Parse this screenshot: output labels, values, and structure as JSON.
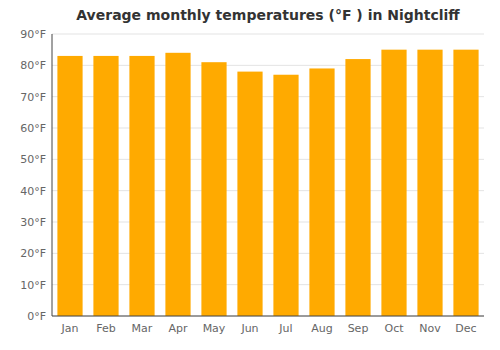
{
  "chart_data": {
    "type": "bar",
    "title": "Average monthly temperatures (°F ) in Nightcliff",
    "categories": [
      "Jan",
      "Feb",
      "Mar",
      "Apr",
      "May",
      "Jun",
      "Jul",
      "Aug",
      "Sep",
      "Oct",
      "Nov",
      "Dec"
    ],
    "values": [
      83,
      83,
      83,
      84,
      81,
      78,
      77,
      79,
      82,
      85,
      85,
      85
    ],
    "color": "#FFAA00",
    "ylim": [
      0,
      90
    ],
    "yticks": [
      {
        "value": 0,
        "label": "0°F"
      },
      {
        "value": 10,
        "label": "10°F"
      },
      {
        "value": 20,
        "label": "20°F"
      },
      {
        "value": 30,
        "label": "30°F"
      },
      {
        "value": 40,
        "label": "40°F"
      },
      {
        "value": 50,
        "label": "50°F"
      },
      {
        "value": 60,
        "label": "60°F"
      },
      {
        "value": 70,
        "label": "70°F"
      },
      {
        "value": 80,
        "label": "80°F"
      },
      {
        "value": 90,
        "label": "90°F"
      }
    ],
    "grid": true
  }
}
